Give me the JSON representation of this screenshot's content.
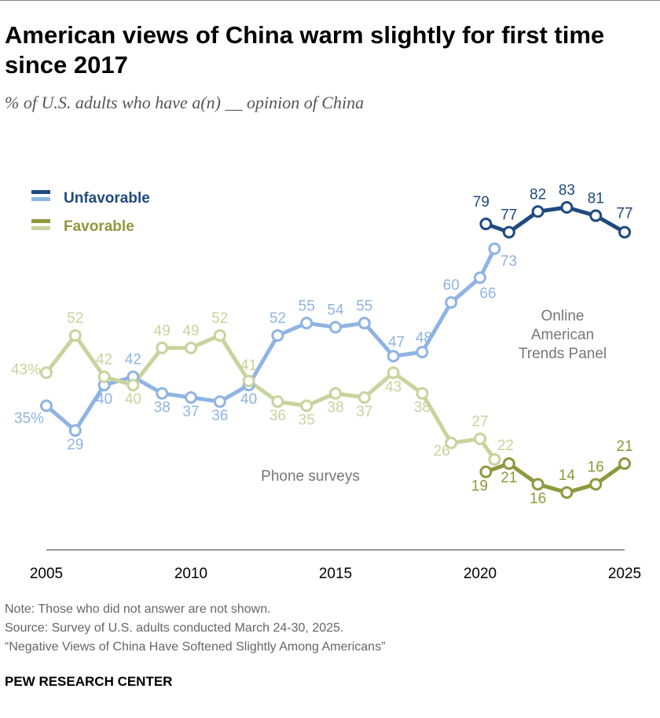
{
  "title": "American views of China warm slightly for first time since 2017",
  "subtitle": "% of U.S. adults who have a(n) __ opinion of China",
  "notes": [
    "Note: Those who did not answer are not shown.",
    "Source: Survey of U.S. adults conducted March 24-30, 2025.",
    "“Negative Views of China Have Softened Slightly Among Americans”"
  ],
  "brand": "PEW RESEARCH CENTER",
  "chart_data": {
    "type": "line",
    "xlim": [
      2005,
      2025
    ],
    "ylim": [
      0,
      100
    ],
    "x_ticks": [
      "2005",
      "2010",
      "2015",
      "2020",
      "2025"
    ],
    "grid": false,
    "legend": {
      "placement": "top-left",
      "entries": [
        "Unfavorable",
        "Favorable"
      ]
    },
    "annotations": [
      "Online American Trends Panel",
      "Phone surveys"
    ],
    "colors": {
      "unfavorable_online": "#1f4a80",
      "unfavorable_phone": "#8fb4e3",
      "favorable_online": "#8f983d",
      "favorable_phone": "#c9d39c"
    },
    "series": [
      {
        "name": "Unfavorable",
        "mode": "Phone surveys",
        "x": [
          2005,
          2006,
          2007,
          2008,
          2009,
          2010,
          2011,
          2012,
          2013,
          2014,
          2015,
          2016,
          2017,
          2018,
          2019,
          2020,
          2020.5
        ],
        "values": [
          35,
          29,
          40,
          42,
          38,
          37,
          36,
          40,
          52,
          55,
          54,
          55,
          47,
          48,
          60,
          66,
          73
        ],
        "labels": [
          "35%",
          "29",
          "40",
          "42",
          "38",
          "37",
          "36",
          "40",
          "52",
          "55",
          "54",
          "55",
          "47",
          "48",
          "60",
          "66",
          "73"
        ]
      },
      {
        "name": "Favorable",
        "mode": "Phone surveys",
        "x": [
          2005,
          2006,
          2007,
          2008,
          2009,
          2010,
          2011,
          2012,
          2013,
          2014,
          2015,
          2016,
          2017,
          2018,
          2019,
          2020,
          2020.5
        ],
        "values": [
          43,
          52,
          42,
          40,
          49,
          49,
          52,
          41,
          36,
          35,
          38,
          37,
          43,
          38,
          26,
          27,
          22
        ],
        "labels": [
          "43%",
          "52",
          "42",
          "40",
          "49",
          "49",
          "52",
          "41",
          "36",
          "35",
          "38",
          "37",
          "43",
          "38",
          "26",
          "27",
          "22"
        ]
      },
      {
        "name": "Unfavorable",
        "mode": "Online American Trends Panel",
        "x": [
          2020.2,
          2021,
          2022,
          2023,
          2024,
          2025
        ],
        "values": [
          79,
          77,
          82,
          83,
          81,
          77
        ],
        "labels": [
          "79",
          "77",
          "82",
          "83",
          "81",
          "77"
        ]
      },
      {
        "name": "Favorable",
        "mode": "Online American Trends Panel",
        "x": [
          2020.2,
          2021,
          2022,
          2023,
          2024,
          2025
        ],
        "values": [
          19,
          21,
          16,
          14,
          16,
          21
        ],
        "labels": [
          "19",
          "21",
          "16",
          "14",
          "16",
          "21"
        ]
      }
    ]
  }
}
